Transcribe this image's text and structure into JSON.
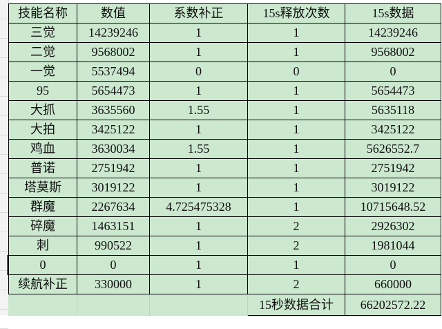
{
  "headers": [
    "技能名称",
    "数值",
    "系数补正",
    "15s释放次数",
    "15s数据"
  ],
  "rows": [
    [
      "三觉",
      "14239246",
      "1",
      "1",
      "14239246"
    ],
    [
      "二觉",
      "9568002",
      "1",
      "1",
      "9568002"
    ],
    [
      "一觉",
      "5537494",
      "0",
      "0",
      "0"
    ],
    [
      "95",
      "5654473",
      "1",
      "1",
      "5654473"
    ],
    [
      "大抓",
      "3635560",
      "1.55",
      "1",
      "5635118"
    ],
    [
      "大拍",
      "3425122",
      "1",
      "1",
      "3425122"
    ],
    [
      "鸡血",
      "3630034",
      "1.55",
      "1",
      "5626552.7"
    ],
    [
      "普诺",
      "2751942",
      "1",
      "1",
      "2751942"
    ],
    [
      "塔莫斯",
      "3019122",
      "1",
      "1",
      "3019122"
    ],
    [
      "群魔",
      "2267634",
      "4.725475328",
      "1",
      "10715648.52"
    ],
    [
      "碎魔",
      "1463151",
      "1",
      "2",
      "2926302"
    ],
    [
      "刺",
      "990522",
      "1",
      "2",
      "1981044"
    ],
    [
      "0",
      "0",
      "1",
      "1",
      "0"
    ],
    [
      "续航补正",
      "330000",
      "1",
      "2",
      "660000"
    ]
  ],
  "total": {
    "label": "15秒数据合计",
    "value": "66202572.22"
  },
  "colors": {
    "cell_fill": "#cce8cf",
    "active_marker": "#217346"
  }
}
